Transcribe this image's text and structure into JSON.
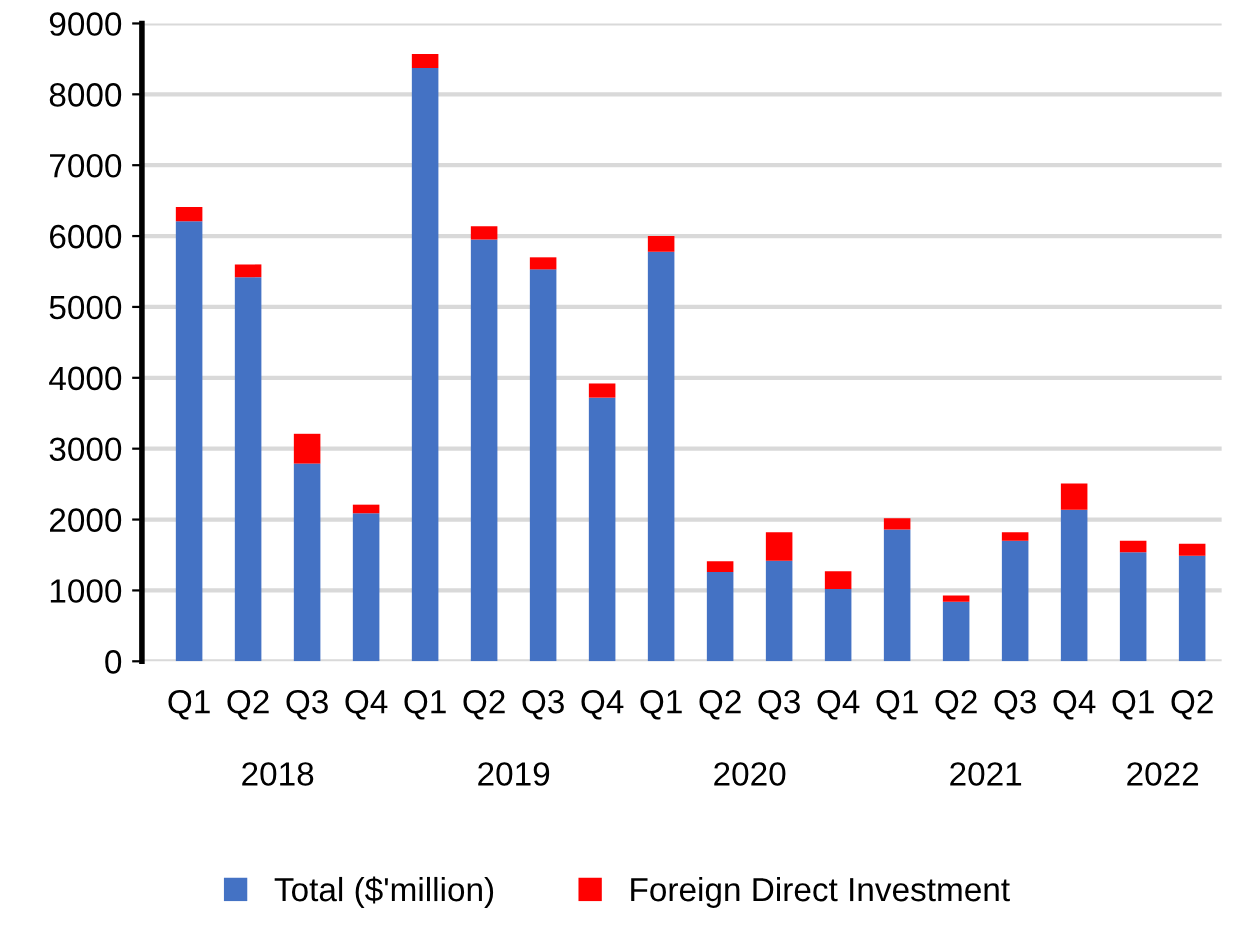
{
  "chart_data": {
    "type": "bar",
    "stacked": true,
    "categories": [
      "Q1",
      "Q2",
      "Q3",
      "Q4",
      "Q1",
      "Q2",
      "Q3",
      "Q4",
      "Q1",
      "Q2",
      "Q3",
      "Q4",
      "Q1",
      "Q2",
      "Q3",
      "Q4",
      "Q1",
      "Q2"
    ],
    "series": [
      {
        "name": "Total ($'million)",
        "color": "#4472c4",
        "values": [
          6210,
          5420,
          2790,
          2090,
          8370,
          5950,
          5530,
          3720,
          5780,
          1260,
          1420,
          1020,
          1860,
          840,
          1700,
          2140,
          1540,
          1490
        ]
      },
      {
        "name": "Foreign Direct Investment",
        "color": "#ff0000",
        "values": [
          200,
          180,
          420,
          120,
          200,
          190,
          170,
          200,
          220,
          150,
          400,
          250,
          160,
          90,
          120,
          370,
          160,
          170
        ]
      }
    ],
    "annotations": [
      "2018",
      "2019",
      "2020",
      "2021",
      "2022"
    ],
    "ylim": [
      0,
      9000
    ],
    "yticks": [
      0,
      1000,
      2000,
      3000,
      4000,
      5000,
      6000,
      7000,
      8000,
      9000
    ],
    "grid": "y",
    "legend": "bottom"
  }
}
